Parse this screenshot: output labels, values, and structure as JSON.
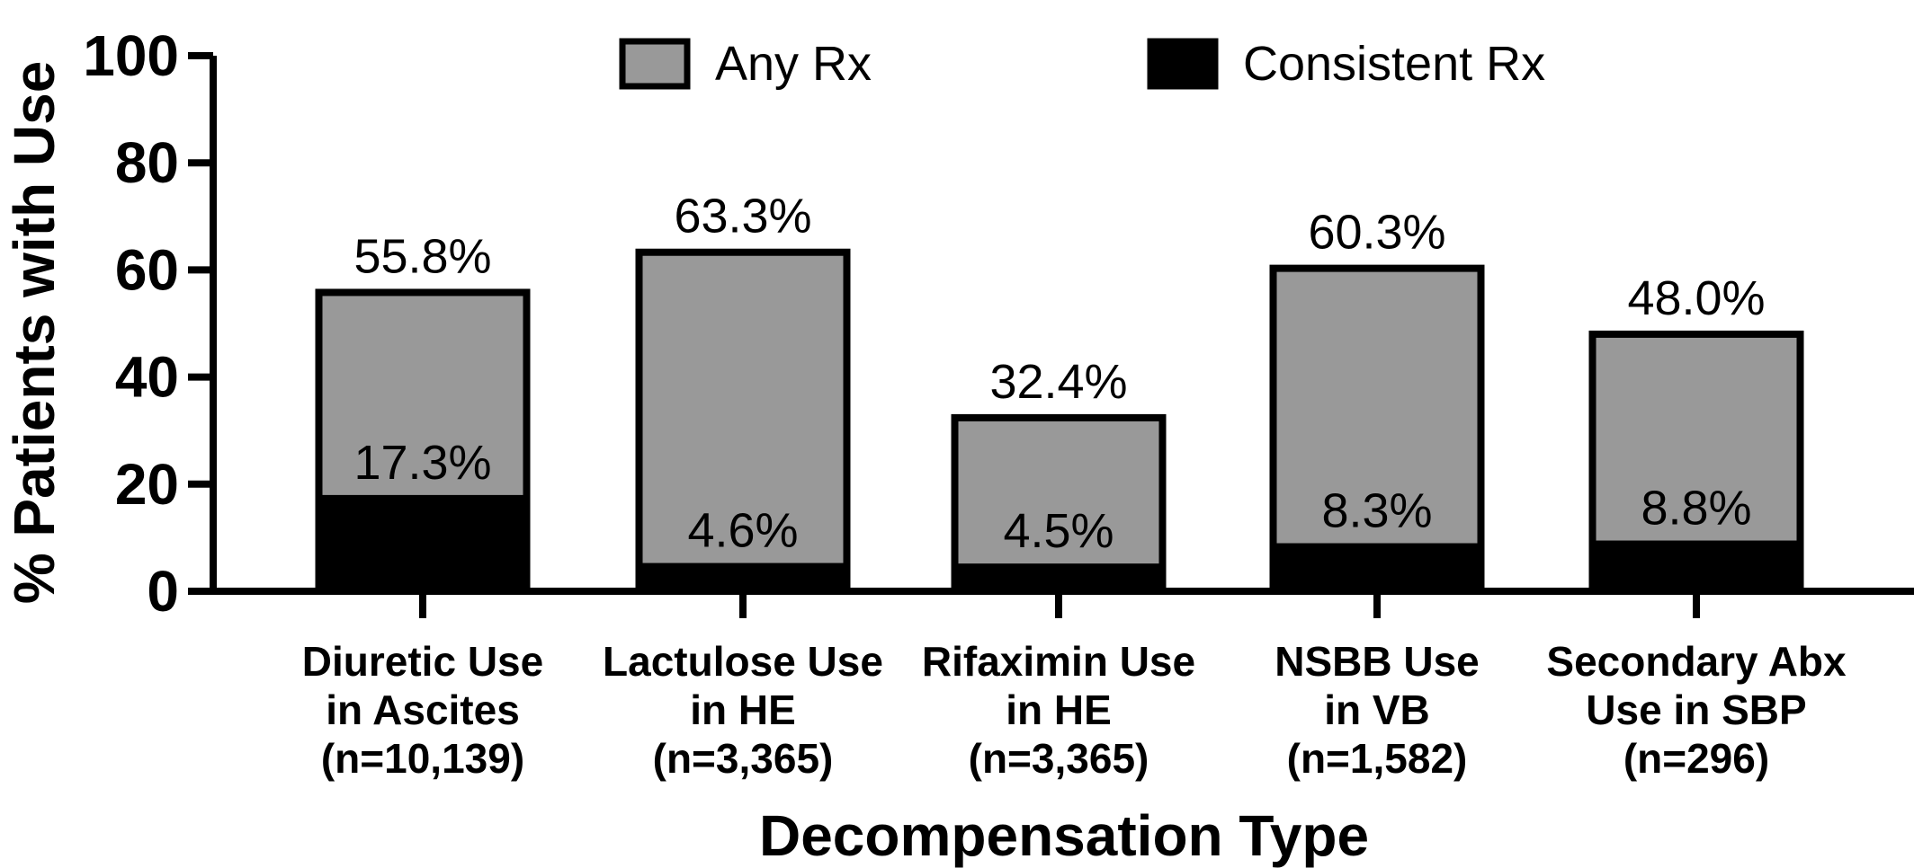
{
  "chart_data": {
    "type": "bar",
    "stacked_overlay": true,
    "categories": [
      [
        "Diuretic Use",
        "in Ascites",
        "(n=10,139)"
      ],
      [
        "Lactulose Use",
        "in HE",
        "(n=3,365)"
      ],
      [
        "Rifaximin Use",
        "in HE",
        "(n=3,365)"
      ],
      [
        "NSBB Use",
        "in VB",
        "(n=1,582)"
      ],
      [
        "Secondary Abx",
        "Use in SBP",
        "(n=296)"
      ]
    ],
    "series": [
      {
        "name": "Any Rx",
        "color": "#999999",
        "values": [
          55.8,
          63.3,
          32.4,
          60.3,
          48.0
        ],
        "labels": [
          "55.8%",
          "63.3%",
          "32.4%",
          "60.3%",
          "48.0%"
        ]
      },
      {
        "name": "Consistent Rx",
        "color": "#000000",
        "values": [
          17.3,
          4.6,
          4.5,
          8.3,
          8.8
        ],
        "labels": [
          "17.3%",
          "4.6%",
          "4.5%",
          "8.3%",
          "8.8%"
        ]
      }
    ],
    "xlabel": "Decompensation Type",
    "ylabel": "% Patients with Use",
    "ylim": [
      0,
      100
    ],
    "yticks": [
      "0",
      "20",
      "40",
      "60",
      "80",
      "100"
    ],
    "grid": false,
    "legend_position": "top"
  }
}
